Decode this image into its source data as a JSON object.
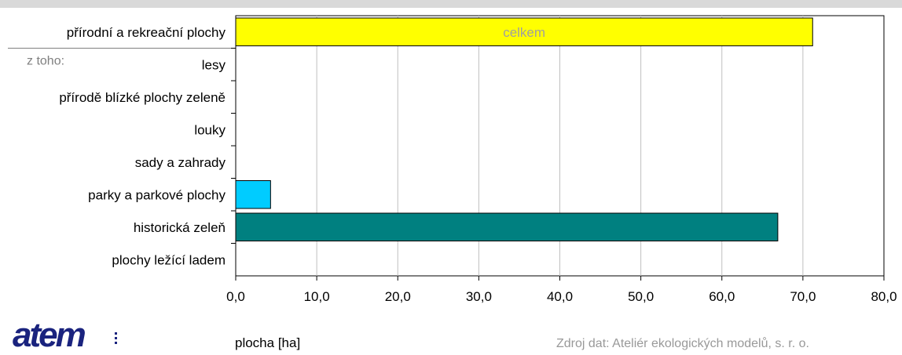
{
  "chart_data": {
    "type": "bar",
    "orientation": "horizontal",
    "categories": [
      "přírodní a rekreační plochy",
      "lesy",
      "přírodě blízké plochy zeleně",
      "louky",
      "sady a zahrady",
      "parky a parkové plochy",
      "historická zeleň",
      "plochy ležící ladem"
    ],
    "values": [
      71.2,
      0,
      0,
      0,
      0,
      4.3,
      66.9,
      0
    ],
    "bar_colors": [
      "#ffff00",
      "#00ccff",
      "#00ccff",
      "#00ccff",
      "#00ccff",
      "#00ccff",
      "#008080",
      "#00ccff"
    ],
    "bar_labels": [
      "celkem",
      "",
      "",
      "",
      "",
      "",
      "",
      ""
    ],
    "subgroup_label": "z toho:",
    "xlim": [
      0,
      80
    ],
    "xticks": [
      "0,0",
      "10,0",
      "20,0",
      "30,0",
      "40,0",
      "50,0",
      "60,0",
      "70,0",
      "80,0"
    ],
    "xlabel": "plocha [ha]",
    "ylabel": "",
    "title": "",
    "grid": "vertical"
  },
  "source_text": "Zdroj dat: Ateliér ekologických modelů, s. r. o.",
  "logo_text": "atem"
}
